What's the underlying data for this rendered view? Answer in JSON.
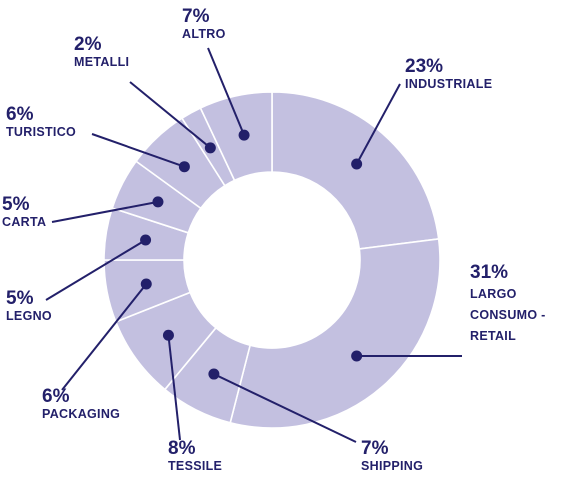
{
  "chart_data": {
    "type": "pie",
    "variant": "donut",
    "title": "",
    "slices": [
      {
        "label": "INDUSTRIALE",
        "label_lines": [
          "INDUSTRIALE"
        ],
        "value": 23,
        "display": "23%"
      },
      {
        "label": "LARGO CONSUMO - RETAIL",
        "label_lines": [
          "LARGO",
          "CONSUMO -",
          "RETAIL"
        ],
        "value": 31,
        "display": "31%"
      },
      {
        "label": "SHIPPING",
        "label_lines": [
          "SHIPPING"
        ],
        "value": 7,
        "display": "7%"
      },
      {
        "label": "TESSILE",
        "label_lines": [
          "TESSILE"
        ],
        "value": 8,
        "display": "8%"
      },
      {
        "label": "PACKAGING",
        "label_lines": [
          "PACKAGING"
        ],
        "value": 6,
        "display": "6%"
      },
      {
        "label": "LEGNO",
        "label_lines": [
          "LEGNO"
        ],
        "value": 5,
        "display": "5%"
      },
      {
        "label": "CARTA",
        "label_lines": [
          "CARTA"
        ],
        "value": 5,
        "display": "5%"
      },
      {
        "label": "TURISTICO",
        "label_lines": [
          "TURISTICO"
        ],
        "value": 6,
        "display": "6%"
      },
      {
        "label": "METALLI",
        "label_lines": [
          "METALLI"
        ],
        "value": 2,
        "display": "2%"
      },
      {
        "label": "ALTRO",
        "label_lines": [
          "ALTRO"
        ],
        "value": 7,
        "display": "7%"
      }
    ],
    "colors": {
      "slice_fill": "#c3c0e0",
      "slice_border": "#ffffff",
      "leader": "#23206a",
      "marker": "#23206a",
      "text": "#23206a"
    }
  }
}
